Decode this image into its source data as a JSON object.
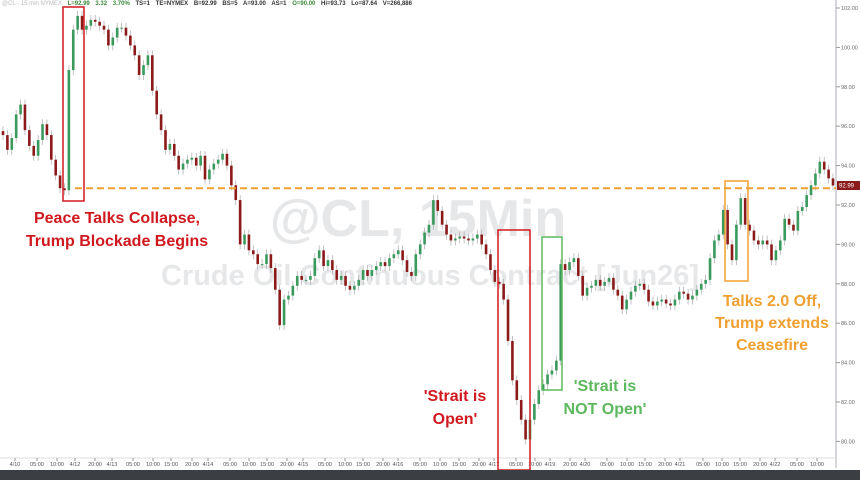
{
  "header": {
    "symbol": "@CL - 15 min NYMEX",
    "last": "L=92.99",
    "change": "3.32",
    "change_pct": "3.70%",
    "ts": "TS=1",
    "te": "TE=NYMEX",
    "bid": "B=92.99",
    "bs": "BS=5",
    "ask": "A=93.00",
    "as": "AS=1",
    "open": "O=90.00",
    "high": "Hi=93.73",
    "low": "Lo=87.64",
    "volume": "V=266,886"
  },
  "watermark": {
    "line1": "@CL, 15Min",
    "line2": "Crude Oil Continuous Contract [Jun26]"
  },
  "price_tag": "92.99",
  "annotations": [
    {
      "lines": [
        "Peace Talks Collapse,",
        "Trump Blockade Begins"
      ],
      "color": "#d0191f"
    },
    {
      "lines": [
        "'Strait is",
        "Open'"
      ],
      "color": "#d0191f"
    },
    {
      "lines": [
        "'Strait is",
        "NOT Open'"
      ],
      "color": "#5cb85c"
    },
    {
      "lines": [
        "Talks 2.0 Off,",
        "Trump extends",
        "Ceasefire"
      ],
      "color": "#f0a030"
    }
  ],
  "chart_data": {
    "type": "candlestick",
    "title": "",
    "ylim": [
      79.2,
      102.4
    ],
    "y_ticks": [
      "102.00",
      "100.00",
      "98.00",
      "96.00",
      "94.00",
      "92.00",
      "90.00",
      "88.00",
      "86.00",
      "84.00",
      "82.00",
      "80.00"
    ],
    "x_ticks": [
      "4/10",
      "05:00",
      "10:00",
      "4/12",
      "20:00",
      "4/13",
      "05:00",
      "10:00",
      "15:00",
      "20:00",
      "4/14",
      "05:00",
      "10:00",
      "15:00",
      "20:00",
      "4/15",
      "05:00",
      "10:00",
      "15:00",
      "20:00",
      "4/16",
      "05:00",
      "10:00",
      "15:00",
      "20:00",
      "4/17",
      "05:00",
      "10:00",
      "4/19",
      "20:00",
      "4/20",
      "05:00",
      "10:00",
      "15:00",
      "20:00",
      "4/21",
      "05:00",
      "10:00",
      "15:00",
      "20:00",
      "4/22",
      "05:00",
      "10:00"
    ],
    "reference_level": 92.85,
    "colors": {
      "up": "#3a9a5e",
      "down": "#8b1a1a",
      "reference": "#f0a030"
    },
    "closes": [
      95.55,
      94.8,
      95.4,
      96.6,
      97.1,
      95.8,
      95.0,
      94.5,
      95.3,
      96.1,
      95.55,
      94.3,
      93.5,
      92.85,
      92.75,
      98.85,
      100.9,
      101.6,
      100.9,
      101.1,
      101.4,
      101.3,
      101.1,
      100.9,
      100.1,
      100.5,
      101.0,
      101.0,
      100.6,
      100.1,
      99.6,
      98.6,
      99.1,
      99.6,
      97.8,
      96.6,
      95.8,
      94.8,
      95.1,
      94.5,
      93.8,
      94.1,
      94.3,
      94.4,
      94.0,
      94.5,
      93.3,
      93.8,
      94.1,
      94.3,
      94.6,
      94.0,
      93.0,
      92.25,
      90.0,
      90.5,
      89.7,
      89.5,
      89.0,
      89.0,
      89.5,
      88.8,
      87.7,
      85.9,
      87.2,
      87.4,
      87.9,
      88.4,
      88.2,
      88.2,
      88.4,
      89.3,
      89.7,
      88.9,
      89.2,
      88.7,
      88.2,
      88.4,
      87.9,
      87.7,
      87.9,
      88.2,
      88.7,
      88.4,
      88.7,
      88.9,
      89.1,
      88.9,
      89.3,
      89.5,
      89.7,
      89.2,
      88.6,
      88.4,
      89.5,
      90.0,
      90.6,
      91.0,
      92.25,
      91.7,
      91.0,
      90.5,
      90.2,
      90.3,
      90.4,
      90.3,
      90.2,
      90.3,
      90.5,
      90.0,
      89.5,
      88.7,
      88.1,
      88.0,
      87.2,
      85.1,
      83.1,
      82.1,
      81.1,
      80.1,
      81.1,
      81.9,
      82.6,
      82.9,
      83.4,
      83.6,
      84.1,
      89.0,
      88.7,
      89.1,
      89.3,
      88.4,
      87.4,
      87.8,
      87.9,
      88.2,
      87.9,
      88.1,
      88.3,
      87.7,
      87.4,
      86.7,
      87.2,
      87.6,
      87.9,
      88.0,
      87.7,
      87.1,
      86.9,
      87.1,
      87.2,
      87.0,
      86.9,
      87.2,
      87.6,
      87.5,
      87.2,
      87.4,
      87.7,
      88.0,
      88.2,
      89.3,
      90.2,
      90.5,
      91.75,
      90.0,
      89.2,
      91.0,
      92.35,
      91.0,
      90.7,
      90.2,
      90.0,
      90.2,
      90.0,
      89.2,
      89.7,
      90.2,
      91.3,
      91.0,
      90.7,
      91.7,
      91.9,
      92.5,
      93.0,
      93.6,
      94.2,
      93.8,
      93.35,
      92.99
    ]
  }
}
